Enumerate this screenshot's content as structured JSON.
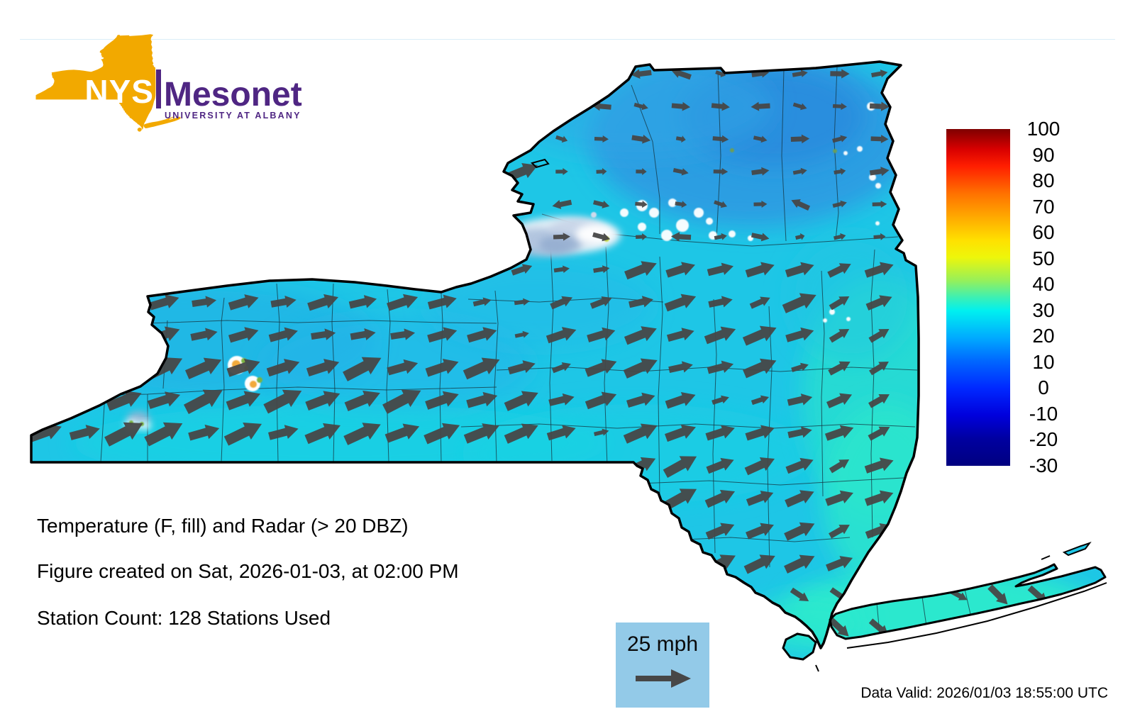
{
  "page": {
    "background": "#ffffff",
    "hairline_color": "#DAEDF8"
  },
  "logo": {
    "nys": "NYS",
    "mesonet": "Mesonet",
    "university": "UNIVERSITY AT ALBANY",
    "gold": "#F2A900",
    "purple": "#4F2683"
  },
  "captions": {
    "title": "Temperature (F, fill) and Radar (> 20 DBZ)",
    "created": "Figure created on Sat, 2026-01-03, at 02:00 PM",
    "stations": "Station Count: 128 Stations Used"
  },
  "wind_legend": {
    "label": "25 mph",
    "background": "#93CAE8",
    "arrow_color": "#474747"
  },
  "footer": {
    "data_valid": "Data Valid: 2026/01/03 18:55:00 UTC"
  },
  "map": {
    "base_fill": "#1EC6E6",
    "county_line_color": "#14333F",
    "outline_color": "#000000",
    "arrow_color": "#474747",
    "radar_colors": {
      "white": "#FFFFFF",
      "blue_gray": "#A8BCD9",
      "green": "#7CB342",
      "orange": "#F2A93B",
      "yellow": "#C6D84A"
    }
  },
  "colorbar": {
    "ticks": [
      "100",
      "90",
      "80",
      "70",
      "60",
      "50",
      "40",
      "30",
      "20",
      "10",
      "0",
      "-10",
      "-20",
      "-30"
    ],
    "gradient": [
      {
        "c": "#7F0000",
        "p": 0
      },
      {
        "c": "#D80000",
        "p": 6
      },
      {
        "c": "#FF1E00",
        "p": 11
      },
      {
        "c": "#FF7000",
        "p": 19
      },
      {
        "c": "#FFA800",
        "p": 26
      },
      {
        "c": "#FFE000",
        "p": 33
      },
      {
        "c": "#EEF60A",
        "p": 38
      },
      {
        "c": "#96F05A",
        "p": 45
      },
      {
        "c": "#3CF0B4",
        "p": 50
      },
      {
        "c": "#00F0F0",
        "p": 54
      },
      {
        "c": "#00AAFF",
        "p": 62
      },
      {
        "c": "#0066FF",
        "p": 69
      },
      {
        "c": "#0028FF",
        "p": 77
      },
      {
        "c": "#0000DC",
        "p": 85
      },
      {
        "c": "#0000A0",
        "p": 92
      },
      {
        "c": "#000080",
        "p": 100
      }
    ]
  },
  "chart_data": {
    "type": "map",
    "region": "New York State",
    "title": "Temperature (F, fill) and Radar (> 20 DBZ)",
    "fill_variable": "Temperature",
    "fill_units": "F",
    "radar_threshold_dbz": 20,
    "colorbar_range": [
      -30,
      100
    ],
    "colorbar_ticks": [
      100,
      90,
      80,
      70,
      60,
      50,
      40,
      30,
      20,
      10,
      0,
      -10,
      -20,
      -30
    ],
    "wind_reference_speed": "25 mph",
    "station_count": 128,
    "figure_created": "Sat, 2026-01-03, at 02:00 PM",
    "data_valid_utc": "2026/01/03 18:55:00 UTC",
    "notes": "Cyan/blue temperature fill over NYS with dark gray wind vectors pointing generally east-northeast; radar echoes over Tug Hill plateau and scattered cells in western NY"
  }
}
